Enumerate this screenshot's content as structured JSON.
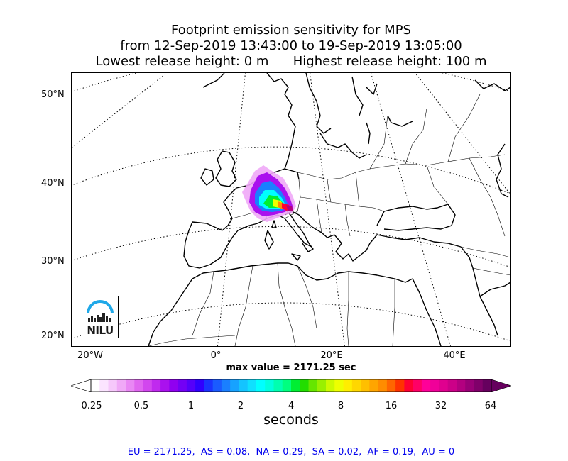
{
  "title": {
    "line1": "Footprint emission sensitivity for MPS",
    "line2": "from 12-Sep-2019 13:43:00 to 19-Sep-2019 13:05:00",
    "line3": "Lowest release height: 0 m      Highest release height: 100 m"
  },
  "map": {
    "lat_labels": [
      "50°N",
      "40°N",
      "30°N",
      "20°N"
    ],
    "lon_labels": [
      "20°W",
      "0°",
      "20°E",
      "40°E"
    ],
    "logo_text": "NILU",
    "footprint_location": "Northern Italy / Alps"
  },
  "max_value": "max value = 2171.25 sec",
  "colorbar": {
    "ticks": [
      "0.25",
      "0.5",
      "1",
      "2",
      "4",
      "8",
      "16",
      "32",
      "64"
    ],
    "unit": "seconds",
    "colors": [
      "#ffffff",
      "#fbe4ff",
      "#f6c8fb",
      "#f0a9f7",
      "#e987f4",
      "#e066f0",
      "#d247ee",
      "#c02aee",
      "#aa11ee",
      "#9000f0",
      "#7300f5",
      "#5500fa",
      "#3000ff",
      "#1a33ff",
      "#1a5bff",
      "#1a7fff",
      "#17a2ff",
      "#14c4ff",
      "#0fe0ff",
      "#00ffff",
      "#00ffdd",
      "#00ffb0",
      "#00ff7f",
      "#00ee33",
      "#22dd00",
      "#66e600",
      "#99f000",
      "#ccfa00",
      "#eeff00",
      "#ffee00",
      "#ffd700",
      "#ffbf00",
      "#ffa500",
      "#ff8c00",
      "#ff6600",
      "#ff3300",
      "#ff0033",
      "#ff0066",
      "#ff0099",
      "#f00099",
      "#e0008f",
      "#cc0088",
      "#b30080",
      "#990077",
      "#80006a",
      "#66005e"
    ]
  },
  "stats": "EU = 2171.25,  AS = 0.08,  NA = 0.29,  SA = 0.02,  AF = 0.19,  AU = 0"
}
